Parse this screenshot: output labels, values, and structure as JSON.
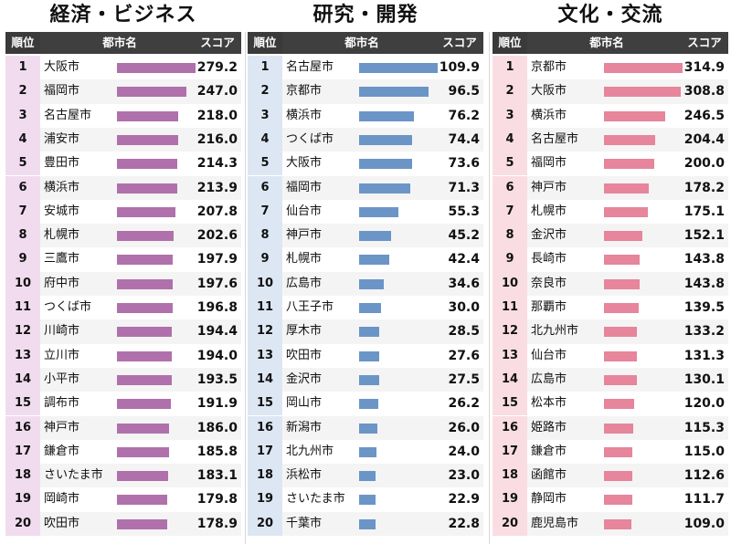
{
  "header": {
    "rank": "順位",
    "city": "都市名",
    "score": "スコア"
  },
  "chart_data": [
    {
      "type": "bar",
      "title": "経済・ビジネス",
      "color": "#b070ab",
      "rank_bg": "#f1dcef",
      "categories": [
        "大阪市",
        "福岡市",
        "名古屋市",
        "浦安市",
        "豊田市",
        "横浜市",
        "安城市",
        "札幌市",
        "三鷹市",
        "府中市",
        "つくば市",
        "川崎市",
        "立川市",
        "小平市",
        "調布市",
        "神戸市",
        "鎌倉市",
        "さいたま市",
        "岡崎市",
        "吹田市"
      ],
      "values": [
        279.2,
        247.0,
        218.0,
        216.0,
        214.3,
        213.9,
        207.8,
        202.6,
        197.9,
        197.6,
        196.8,
        194.4,
        194.0,
        193.5,
        191.9,
        186.0,
        185.8,
        183.1,
        179.8,
        178.9
      ],
      "labels": [
        "279.2",
        "247.0",
        "218.0",
        "216.0",
        "214.3",
        "213.9",
        "207.8",
        "202.6",
        "197.9",
        "197.6",
        "196.8",
        "194.4",
        "194.0",
        "193.5",
        "191.9",
        "186.0",
        "185.8",
        "183.1",
        "179.8",
        "178.9"
      ]
    },
    {
      "type": "bar",
      "title": "研究・開発",
      "color": "#6b95c6",
      "rank_bg": "#dde7f3",
      "categories": [
        "名古屋市",
        "京都市",
        "横浜市",
        "つくば市",
        "大阪市",
        "福岡市",
        "仙台市",
        "神戸市",
        "札幌市",
        "広島市",
        "八王子市",
        "厚木市",
        "吹田市",
        "金沢市",
        "岡山市",
        "新潟市",
        "北九州市",
        "浜松市",
        "さいたま市",
        "千葉市"
      ],
      "values": [
        109.9,
        96.5,
        76.2,
        74.4,
        73.6,
        71.3,
        55.3,
        45.2,
        42.4,
        34.6,
        30.0,
        28.5,
        27.6,
        27.5,
        26.2,
        26.0,
        24.0,
        23.0,
        22.9,
        22.8
      ],
      "labels": [
        "109.9",
        "96.5",
        "76.2",
        "74.4",
        "73.6",
        "71.3",
        "55.3",
        "45.2",
        "42.4",
        "34.6",
        "30.0",
        "28.5",
        "27.6",
        "27.5",
        "26.2",
        "26.0",
        "24.0",
        "23.0",
        "22.9",
        "22.8"
      ]
    },
    {
      "type": "bar",
      "title": "文化・交流",
      "color": "#e6859b",
      "rank_bg": "#f9dde3",
      "categories": [
        "京都市",
        "大阪市",
        "横浜市",
        "名古屋市",
        "福岡市",
        "神戸市",
        "札幌市",
        "金沢市",
        "長崎市",
        "奈良市",
        "那覇市",
        "北九州市",
        "仙台市",
        "広島市",
        "松本市",
        "姫路市",
        "鎌倉市",
        "函館市",
        "静岡市",
        "鹿児島市"
      ],
      "values": [
        314.9,
        308.8,
        246.5,
        204.4,
        200.0,
        178.2,
        175.1,
        152.1,
        143.8,
        143.8,
        139.5,
        133.2,
        131.3,
        130.1,
        120.0,
        115.3,
        115.0,
        112.6,
        111.7,
        109.0
      ],
      "labels": [
        "314.9",
        "308.8",
        "246.5",
        "204.4",
        "200.0",
        "178.2",
        "175.1",
        "152.1",
        "143.8",
        "143.8",
        "139.5",
        "133.2",
        "131.3",
        "130.1",
        "120.0",
        "115.3",
        "115.0",
        "112.6",
        "111.7",
        "109.0"
      ]
    }
  ]
}
